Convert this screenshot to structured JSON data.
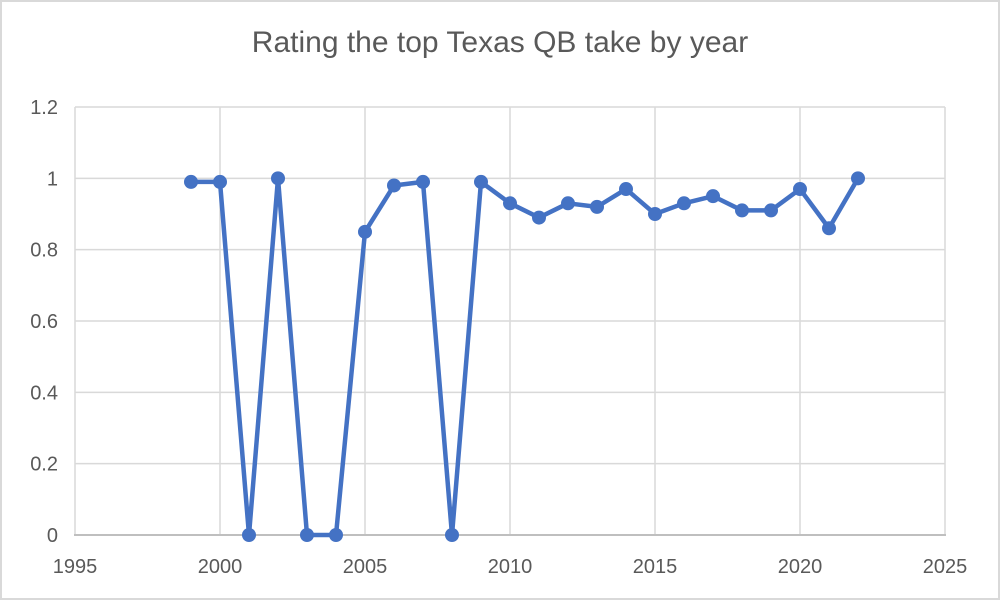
{
  "chart_data": {
    "type": "line",
    "title": "Rating the top Texas QB take by year",
    "xlabel": "",
    "ylabel": "",
    "x": [
      1999,
      2000,
      2001,
      2002,
      2003,
      2004,
      2005,
      2006,
      2007,
      2008,
      2009,
      2010,
      2011,
      2012,
      2013,
      2014,
      2015,
      2016,
      2017,
      2018,
      2019,
      2020,
      2021,
      2022
    ],
    "values": [
      0.99,
      0.99,
      0,
      1,
      0,
      0,
      0.85,
      0.98,
      0.99,
      0,
      0.99,
      0.93,
      0.89,
      0.93,
      0.92,
      0.97,
      0.9,
      0.93,
      0.95,
      0.91,
      0.91,
      0.97,
      0.86,
      1
    ],
    "xlim": [
      1995,
      2025
    ],
    "ylim": [
      0,
      1.2
    ],
    "x_ticks": [
      1995,
      2000,
      2005,
      2010,
      2015,
      2020,
      2025
    ],
    "x_tick_labels": [
      "1995",
      "2000",
      "2005",
      "2010",
      "2015",
      "2020",
      "2025"
    ],
    "y_ticks": [
      0,
      0.2,
      0.4,
      0.6,
      0.8,
      1,
      1.2
    ],
    "y_tick_labels": [
      "0",
      "0.2",
      "0.4",
      "0.6",
      "0.8",
      "1",
      "1.2"
    ],
    "grid": true,
    "legend": "none",
    "marker": "circle",
    "colors": {
      "line": "#4472C4",
      "marker": "#4472C4",
      "gridline": "#d9d9d9",
      "axis_line": "#bfbfbf",
      "tick_text": "#595959",
      "title_text": "#595959",
      "background": "#ffffff",
      "chart_border": "#d9d9d9"
    }
  }
}
